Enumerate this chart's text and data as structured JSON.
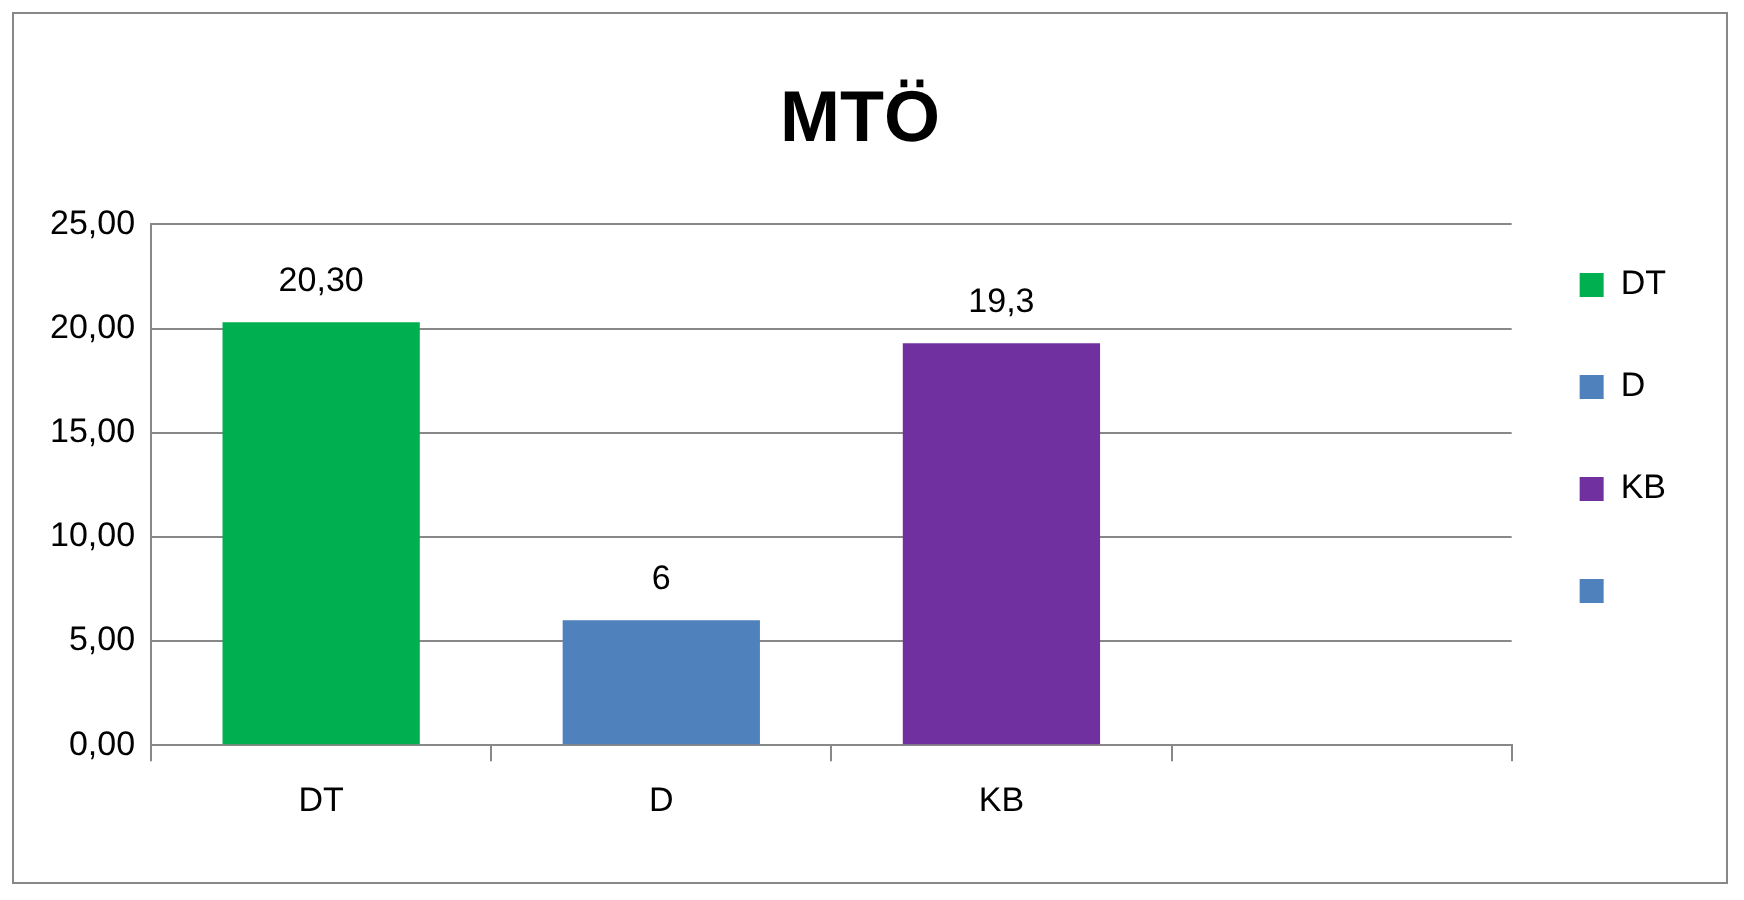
{
  "chart_data": {
    "type": "bar",
    "title": "MTÖ",
    "categories": [
      "DT",
      "D",
      "KB",
      null
    ],
    "series": [
      {
        "name": "DT",
        "color": "#00b050",
        "values": [
          20.3,
          null,
          null,
          null
        ],
        "value_labels": [
          "20,30",
          null,
          null,
          null
        ]
      },
      {
        "name": "D",
        "color": "#4f81bd",
        "values": [
          null,
          6,
          null,
          null
        ],
        "value_labels": [
          null,
          "6",
          null,
          null
        ]
      },
      {
        "name": "KB",
        "color": "#7030a0",
        "values": [
          null,
          null,
          19.3,
          null
        ],
        "value_labels": [
          null,
          null,
          "19,3",
          null
        ]
      },
      {
        "color": "#4f81bd",
        "values": [
          null,
          null,
          null,
          null
        ]
      }
    ],
    "ylim": [
      0,
      25
    ],
    "yticks": [
      {
        "value": 0,
        "label": "0,00"
      },
      {
        "value": 5,
        "label": "5,00"
      },
      {
        "value": 10,
        "label": "10,00"
      },
      {
        "value": 15,
        "label": "15,00"
      },
      {
        "value": 20,
        "label": "20,00"
      },
      {
        "value": 25,
        "label": "25,00"
      }
    ],
    "grid": "y",
    "legend": "right"
  }
}
